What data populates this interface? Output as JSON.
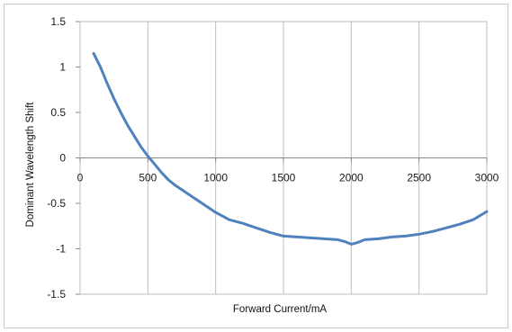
{
  "chart_data": {
    "type": "line",
    "title": "",
    "xlabel": "Forward Current/mA",
    "ylabel": "Dominant Wavelength Shift",
    "xlim": [
      0,
      3000
    ],
    "ylim": [
      -1.5,
      1.5
    ],
    "x_ticks": [
      0,
      500,
      1000,
      1500,
      2000,
      2500,
      3000
    ],
    "y_ticks": [
      1.5,
      1,
      0.5,
      0,
      -0.5,
      -1,
      -1.5
    ],
    "x_tick_labels": [
      "0",
      "500",
      "1000",
      "1500",
      "2000",
      "2500",
      "3000"
    ],
    "y_tick_labels": [
      "1.5",
      "1",
      "0.5",
      "0",
      "-0.5",
      "-1",
      "-1.5"
    ],
    "grid": {
      "vertical": true,
      "horizontal": false
    },
    "legend": "none",
    "line_color": "#4f81bd",
    "series": [
      {
        "x": [
          100,
          150,
          200,
          250,
          300,
          350,
          400,
          450,
          500,
          550,
          600,
          650,
          700,
          800,
          900,
          1000,
          1100,
          1200,
          1300,
          1400,
          1500,
          1600,
          1700,
          1800,
          1900,
          1950,
          2000,
          2050,
          2100,
          2200,
          2300,
          2400,
          2500,
          2600,
          2700,
          2800,
          2900,
          3000
        ],
        "y": [
          1.15,
          1.0,
          0.82,
          0.65,
          0.5,
          0.36,
          0.24,
          0.12,
          0.02,
          -0.07,
          -0.16,
          -0.24,
          -0.3,
          -0.4,
          -0.5,
          -0.6,
          -0.68,
          -0.72,
          -0.77,
          -0.82,
          -0.86,
          -0.87,
          -0.88,
          -0.89,
          -0.9,
          -0.92,
          -0.95,
          -0.93,
          -0.9,
          -0.89,
          -0.87,
          -0.86,
          -0.84,
          -0.81,
          -0.77,
          -0.73,
          -0.68,
          -0.59
        ]
      }
    ]
  }
}
